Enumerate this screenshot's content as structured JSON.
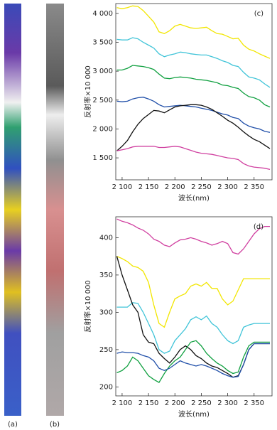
{
  "panels": {
    "a": "(a)",
    "b": "(b)"
  },
  "chart_data": [
    {
      "type": "line",
      "label": "(c)",
      "x_label": "波长(nm)",
      "y_label": "反射率×10 000",
      "x": [
        2090,
        2100,
        2110,
        2120,
        2130,
        2140,
        2150,
        2160,
        2170,
        2180,
        2190,
        2200,
        2210,
        2220,
        2230,
        2240,
        2250,
        2260,
        2270,
        2280,
        2290,
        2300,
        2310,
        2320,
        2330,
        2340,
        2350,
        2360,
        2370,
        2380
      ],
      "xlim": [
        2088,
        2384
      ],
      "xticks": [
        {
          "value": 2100,
          "label": "2 100"
        },
        {
          "value": 2150,
          "label": "2 150"
        },
        {
          "value": 2200,
          "label": "2 200"
        },
        {
          "value": 2250,
          "label": "2 250"
        },
        {
          "value": 2300,
          "label": "2 300"
        },
        {
          "value": 2350,
          "label": "2 350"
        }
      ],
      "ylim": [
        1120,
        4170
      ],
      "yticks": [
        {
          "value": 1500,
          "label": "1 500"
        },
        {
          "value": 2000,
          "label": "2 000"
        },
        {
          "value": 2500,
          "label": "2 500"
        },
        {
          "value": 3000,
          "label": "3 000"
        },
        {
          "value": 3500,
          "label": "3 500"
        },
        {
          "value": 4000,
          "label": "4 000"
        }
      ],
      "series": [
        {
          "color": "#f2e600",
          "values": [
            4100,
            4080,
            4100,
            4130,
            4120,
            4050,
            3950,
            3850,
            3680,
            3650,
            3700,
            3780,
            3810,
            3780,
            3750,
            3740,
            3750,
            3760,
            3700,
            3650,
            3640,
            3600,
            3560,
            3570,
            3450,
            3380,
            3350,
            3300,
            3260,
            3220
          ]
        },
        {
          "color": "#40c4d8",
          "values": [
            3550,
            3540,
            3540,
            3580,
            3560,
            3500,
            3450,
            3400,
            3300,
            3250,
            3280,
            3300,
            3330,
            3320,
            3300,
            3290,
            3280,
            3280,
            3250,
            3220,
            3180,
            3150,
            3100,
            3080,
            2980,
            2900,
            2880,
            2850,
            2780,
            2720
          ]
        },
        {
          "color": "#10a040",
          "values": [
            3020,
            3020,
            3050,
            3100,
            3090,
            3080,
            3060,
            3030,
            2950,
            2880,
            2870,
            2890,
            2900,
            2890,
            2880,
            2860,
            2850,
            2840,
            2820,
            2800,
            2760,
            2750,
            2720,
            2700,
            2620,
            2560,
            2540,
            2500,
            2420,
            2380
          ]
        },
        {
          "color": "#1f4ea8",
          "values": [
            2480,
            2470,
            2480,
            2520,
            2540,
            2550,
            2520,
            2480,
            2420,
            2380,
            2390,
            2400,
            2410,
            2400,
            2390,
            2380,
            2360,
            2340,
            2320,
            2290,
            2260,
            2240,
            2200,
            2180,
            2100,
            2050,
            2020,
            2000,
            1960,
            1940
          ]
        },
        {
          "color": "#111111",
          "values": [
            1620,
            1700,
            1800,
            1950,
            2080,
            2180,
            2250,
            2320,
            2310,
            2280,
            2330,
            2380,
            2400,
            2410,
            2420,
            2420,
            2410,
            2380,
            2340,
            2280,
            2220,
            2150,
            2100,
            2030,
            1950,
            1880,
            1820,
            1780,
            1720,
            1660
          ]
        },
        {
          "color": "#d040a0",
          "values": [
            1620,
            1640,
            1660,
            1690,
            1700,
            1700,
            1700,
            1700,
            1680,
            1680,
            1690,
            1700,
            1690,
            1660,
            1630,
            1600,
            1580,
            1570,
            1560,
            1540,
            1520,
            1500,
            1490,
            1470,
            1400,
            1360,
            1340,
            1330,
            1320,
            1300
          ]
        }
      ]
    },
    {
      "type": "line",
      "label": "(d)",
      "x_label": "波长(nm)",
      "y_label": "反射率×10 000",
      "x": [
        2090,
        2100,
        2110,
        2120,
        2130,
        2140,
        2150,
        2160,
        2170,
        2180,
        2190,
        2200,
        2210,
        2220,
        2230,
        2240,
        2250,
        2260,
        2270,
        2280,
        2290,
        2300,
        2310,
        2320,
        2330,
        2340,
        2350,
        2360,
        2370,
        2380
      ],
      "xlim": [
        2088,
        2384
      ],
      "xticks": [
        {
          "value": 2100,
          "label": "2 100"
        },
        {
          "value": 2150,
          "label": "2 150"
        },
        {
          "value": 2200,
          "label": "2 200"
        },
        {
          "value": 2250,
          "label": "2 250"
        },
        {
          "value": 2300,
          "label": "2 300"
        },
        {
          "value": 2350,
          "label": "2 350"
        }
      ],
      "ylim": [
        188,
        428
      ],
      "yticks": [
        200,
        250,
        300,
        350,
        400
      ],
      "series": [
        {
          "color": "#d040a0",
          "values": [
            425,
            422,
            420,
            417,
            413,
            410,
            405,
            398,
            395,
            390,
            388,
            393,
            397,
            398,
            400,
            398,
            395,
            393,
            390,
            392,
            395,
            392,
            380,
            378,
            385,
            395,
            405,
            412,
            415,
            415
          ]
        },
        {
          "color": "#f2e600",
          "values": [
            375,
            372,
            368,
            362,
            360,
            355,
            340,
            310,
            285,
            280,
            300,
            318,
            322,
            325,
            335,
            338,
            335,
            340,
            332,
            332,
            318,
            310,
            315,
            330,
            345,
            345,
            345,
            345,
            345,
            345
          ]
        },
        {
          "color": "#40c4d8",
          "values": [
            307,
            307,
            307,
            313,
            312,
            300,
            285,
            270,
            250,
            245,
            248,
            262,
            270,
            278,
            290,
            294,
            290,
            295,
            285,
            280,
            270,
            262,
            258,
            262,
            280,
            283,
            285,
            285,
            285,
            285
          ]
        },
        {
          "color": "#111111",
          "values": [
            375,
            350,
            330,
            310,
            300,
            270,
            260,
            258,
            245,
            238,
            232,
            240,
            250,
            255,
            250,
            242,
            238,
            232,
            228,
            226,
            222,
            218,
            213,
            215,
            230,
            250,
            258,
            258,
            258,
            258
          ]
        },
        {
          "color": "#10a040",
          "values": [
            219,
            222,
            228,
            240,
            235,
            225,
            215,
            210,
            206,
            218,
            228,
            235,
            240,
            250,
            260,
            262,
            255,
            245,
            238,
            232,
            228,
            222,
            218,
            220,
            240,
            255,
            260,
            260,
            260,
            260
          ]
        },
        {
          "color": "#1f4ea8",
          "values": [
            245,
            247,
            246,
            246,
            245,
            242,
            240,
            235,
            225,
            222,
            225,
            230,
            235,
            232,
            230,
            228,
            230,
            228,
            225,
            222,
            218,
            215,
            213,
            214,
            230,
            250,
            258,
            258,
            258,
            258
          ]
        }
      ]
    }
  ]
}
